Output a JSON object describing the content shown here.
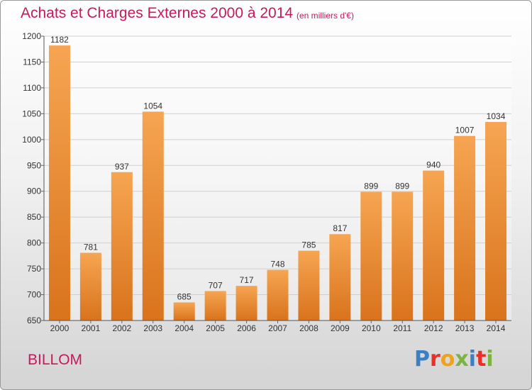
{
  "header": {
    "title": "Achats et Charges Externes 2000 à 2014",
    "unit_note": "(en milliers d'€)"
  },
  "footer": {
    "commune": "BILLOM",
    "brand": "Proxiti"
  },
  "colors": {
    "title": "#c8195a",
    "bar_light": "#f6a552",
    "bar_dark": "#d9731c",
    "brand_letters": [
      "#3b7fc4",
      "#e8302a",
      "#f0a21a",
      "#7cb342",
      "#3b7fc4",
      "#e8302a",
      "#7cb342"
    ]
  },
  "chart_data": {
    "type": "bar",
    "title": "Achats et Charges Externes 2000 à 2014",
    "subtitle": "(en milliers d'€)",
    "xlabel": "",
    "ylabel": "",
    "categories": [
      "2000",
      "2001",
      "2002",
      "2003",
      "2004",
      "2005",
      "2006",
      "2007",
      "2008",
      "2009",
      "2010",
      "2011",
      "2012",
      "2013",
      "2014"
    ],
    "values": [
      1182,
      781,
      937,
      1054,
      685,
      707,
      717,
      748,
      785,
      817,
      899,
      899,
      940,
      1007,
      1034
    ],
    "data_labels": [
      "1182",
      "781",
      "937",
      "1054",
      "685",
      "707",
      "717",
      "748",
      "785",
      "817",
      "899",
      "899",
      "940",
      "1007",
      "1034"
    ],
    "ylim": [
      650,
      1200
    ],
    "yticks": [
      "650",
      "700",
      "750",
      "800",
      "850",
      "900",
      "950",
      "1000",
      "1050",
      "1100",
      "1150",
      "1200"
    ],
    "grid": true
  }
}
